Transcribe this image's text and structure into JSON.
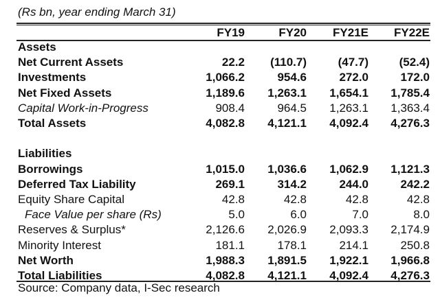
{
  "title": "(Rs bn, year ending March 31)",
  "columns": [
    "FY19",
    "FY20",
    "FY21E",
    "FY22E"
  ],
  "rows": [
    {
      "label": "Assets",
      "values": [],
      "style": "bold"
    },
    {
      "label": "Net Current Assets",
      "values": [
        "22.2",
        "(110.7)",
        "(47.7)",
        "(52.4)"
      ],
      "style": "bold"
    },
    {
      "label": "Investments",
      "values": [
        "1,066.2",
        "954.6",
        "272.0",
        "172.0"
      ],
      "style": "bold"
    },
    {
      "label": "Net Fixed Assets",
      "values": [
        "1,189.6",
        "1,263.1",
        "1,654.1",
        "1,785.4"
      ],
      "style": "bold"
    },
    {
      "label": "Capital Work-in-Progress",
      "values": [
        "908.4",
        "964.5",
        "1,263.1",
        "1,363.4"
      ],
      "style": "italic"
    },
    {
      "label": "Total Assets",
      "values": [
        "4,082.8",
        "4,121.1",
        "4,092.4",
        "4,276.3"
      ],
      "style": "bold"
    },
    {
      "label": "",
      "values": [],
      "style": "spacer"
    },
    {
      "label": "Liabilities",
      "values": [],
      "style": "bold"
    },
    {
      "label": "Borrowings",
      "values": [
        "1,015.0",
        "1,036.6",
        "1,062.9",
        "1,121.3"
      ],
      "style": "bold"
    },
    {
      "label": "Deferred Tax Liability",
      "values": [
        "269.1",
        "314.2",
        "244.0",
        "242.2"
      ],
      "style": "bold"
    },
    {
      "label": "Equity Share Capital",
      "values": [
        "42.8",
        "42.8",
        "42.8",
        "42.8"
      ],
      "style": "normal"
    },
    {
      "label": "Face Value per share (Rs)",
      "values": [
        "5.0",
        "6.0",
        "7.0",
        "8.0"
      ],
      "style": "italic indent"
    },
    {
      "label": "Reserves & Surplus*",
      "values": [
        "2,126.6",
        "2,026.9",
        "2,093.3",
        "2,174.9"
      ],
      "style": "normal"
    },
    {
      "label": "Minority Interest",
      "values": [
        "181.1",
        "178.1",
        "214.1",
        "250.8"
      ],
      "style": "normal"
    },
    {
      "label": "Net Worth",
      "values": [
        "1,988.3",
        "1,891.5",
        "1,922.1",
        "1,966.8"
      ],
      "style": "bold"
    },
    {
      "label": "Total Liabilities",
      "values": [
        "4,082.8",
        "4,121.1",
        "4,092.4",
        "4,276.3"
      ],
      "style": "bold"
    }
  ],
  "source": "Source: Company data, I-Sec research"
}
